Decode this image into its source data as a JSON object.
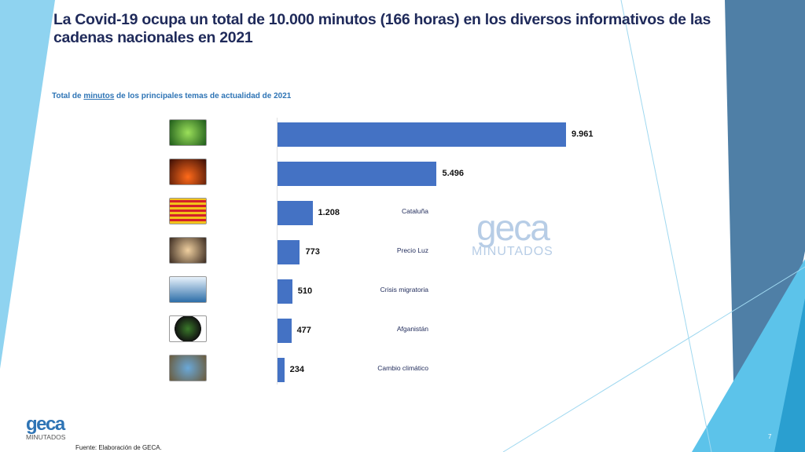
{
  "slide": {
    "title": "La Covid-19 ocupa un total de 10.000 minutos (166 horas) en los diversos informativos de las cadenas nacionales en 2021",
    "subtitle_pre": "Total de ",
    "subtitle_u": "minutos",
    "subtitle_post": " de los principales temas de actualidad de 2021",
    "watermark_brand": "geca",
    "watermark_sub": "MINUTADOS",
    "logo_brand": "geca",
    "logo_sub": "MINUTADOS",
    "source": "Fuente: Elaboración de GECA.",
    "page_number": "7",
    "colors": {
      "bar": "#4472c4",
      "title": "#1f2a5a",
      "accent_light": "#8fd3f0",
      "accent_dark": "#4f7fa6"
    }
  },
  "chart_data": {
    "type": "bar",
    "orientation": "horizontal",
    "title": "Total de minutos de los principales temas de actualidad de 2021",
    "categories": [
      "Covid",
      "Cumbre Vieja",
      "Cataluña",
      "Precio Luz",
      "Crisis migratoria",
      "Afganistán",
      "Cambio climático"
    ],
    "values": [
      9961,
      5496,
      1208,
      773,
      510,
      477,
      234
    ],
    "value_labels": [
      "9.961",
      "5.496",
      "1.208",
      "773",
      "510",
      "477",
      "234"
    ],
    "icons": [
      "virus-image",
      "volcano-image",
      "catalonia-flag-map-image",
      "lightbulb-image",
      "migrants-image",
      "afghanistan-map-image",
      "globe-hands-image"
    ],
    "grid": false
  }
}
